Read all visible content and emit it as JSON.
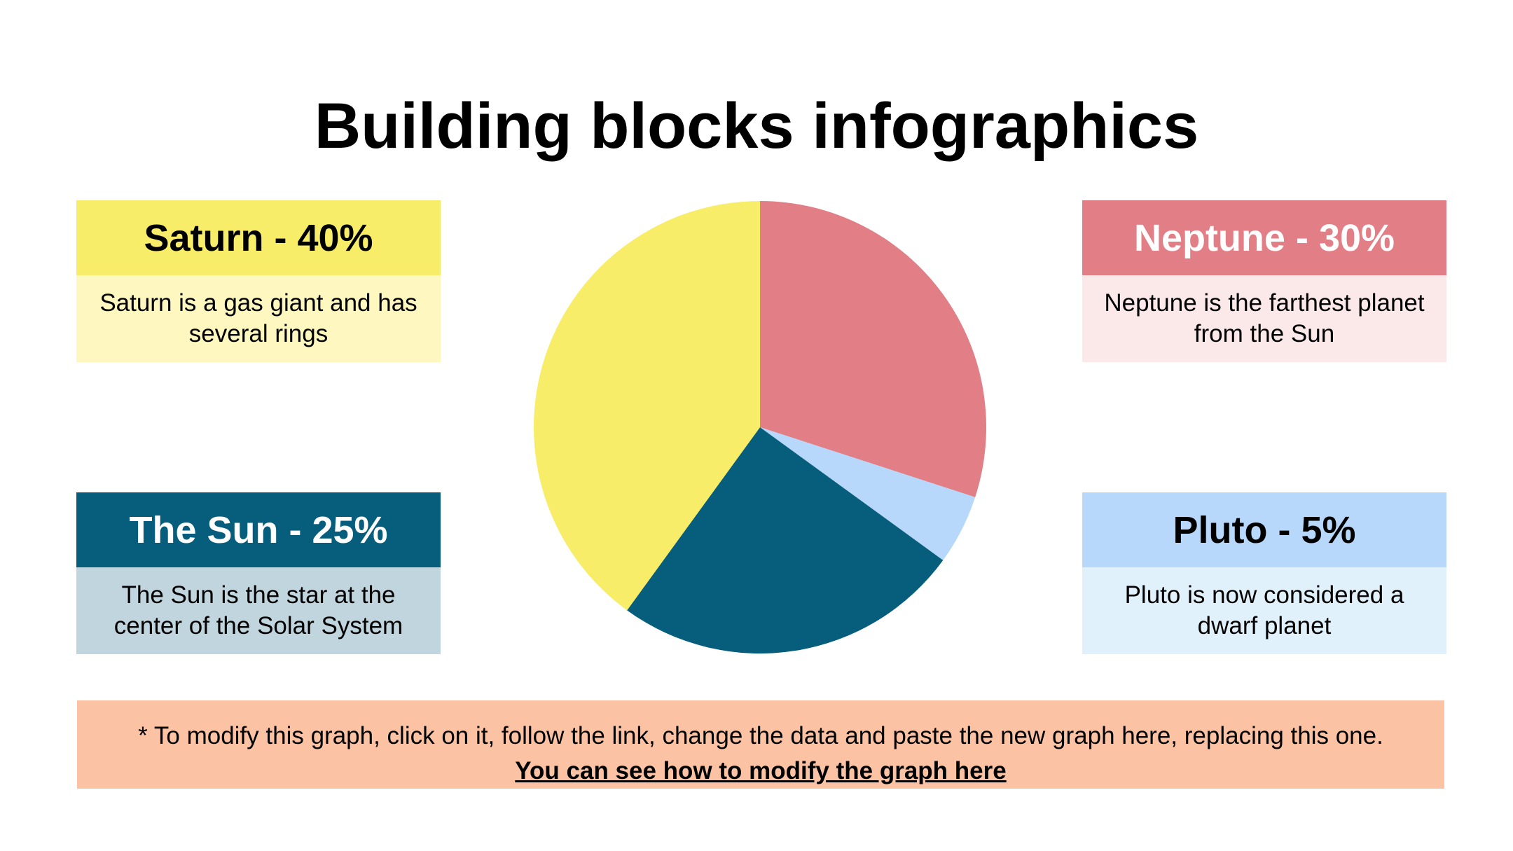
{
  "title": "Building blocks infographics",
  "cards": {
    "saturn": {
      "heading": "Saturn - 40%",
      "text": "Saturn is a gas giant and has several rings",
      "head_color": "#f7ed68",
      "head_text_color": "#000000",
      "body_color": "#fef8c0"
    },
    "neptune": {
      "heading": "Neptune - 30%",
      "text": "Neptune is the farthest planet from the Sun",
      "head_color": "#e27e85",
      "head_text_color": "#ffffff",
      "body_color": "#fbe8e9"
    },
    "sun": {
      "heading": "The Sun - 25%",
      "text": "The Sun is the star at the center of the Solar System",
      "head_color": "#065d7c",
      "head_text_color": "#ffffff",
      "body_color": "#c0d5de"
    },
    "pluto": {
      "heading": "Pluto - 5%",
      "text": "Pluto is now considered a dwarf planet",
      "head_color": "#b7d8fb",
      "head_text_color": "#000000",
      "body_color": "#e1f1fc"
    }
  },
  "chart_data": {
    "type": "pie",
    "categories": [
      "Neptune",
      "Pluto",
      "The Sun",
      "Saturn"
    ],
    "values": [
      30,
      5,
      25,
      40
    ],
    "colors": [
      "#e27e85",
      "#b7d8fb",
      "#065d7c",
      "#f7ed68"
    ],
    "start_angle_deg": 0,
    "direction": "clockwise"
  },
  "note": {
    "text": "* To modify this graph, click on it, follow the link, change the data and paste the new graph here, replacing this one.",
    "link_text": "You can see how to modify the graph here",
    "background": "#fbc3a4"
  }
}
